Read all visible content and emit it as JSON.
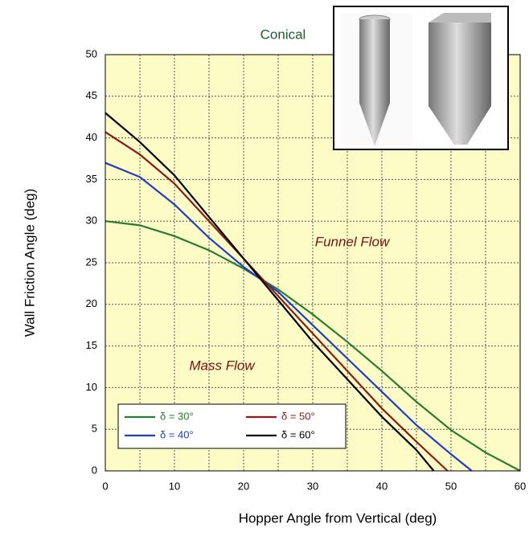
{
  "chart_data": {
    "type": "line",
    "xlabel": "Hopper Angle from Vertical (deg)",
    "ylabel": "Wall Friction Angle (deg)",
    "annotations": [
      "Conical",
      "Funnel Flow",
      "Mass Flow"
    ],
    "xlim": [
      0,
      60
    ],
    "xticks": [
      0,
      10,
      20,
      30,
      40,
      50,
      60
    ],
    "xgrid": [
      0,
      5,
      10,
      15,
      20,
      25,
      30,
      35,
      40,
      45,
      50,
      55,
      60
    ],
    "ylim": [
      0,
      50
    ],
    "yticks": [
      0,
      5,
      10,
      15,
      20,
      25,
      30,
      35,
      40,
      45,
      50
    ],
    "grid": true,
    "legend": "lower left",
    "series": [
      {
        "name": "δ = 30°",
        "color": "#2a7a35",
        "x": [
          0,
          5,
          10,
          15,
          20,
          25,
          30,
          35,
          40,
          45,
          50,
          55,
          60
        ],
        "values": [
          30,
          29.5,
          28.2,
          26.5,
          24.3,
          21.8,
          18.8,
          15.5,
          12,
          8.3,
          4.9,
          2.2,
          0
        ]
      },
      {
        "name": "δ = 40°",
        "color": "#1f3fc0",
        "x": [
          0,
          5,
          10,
          15,
          20,
          25,
          30,
          35,
          40,
          45,
          50,
          53
        ],
        "values": [
          37,
          35.3,
          32,
          28,
          24.5,
          21.5,
          17.5,
          13.5,
          9.5,
          5.5,
          2,
          0
        ]
      },
      {
        "name": "δ = 50°",
        "color": "#8b1a1a",
        "x": [
          0,
          5,
          10,
          15,
          20,
          25,
          30,
          35,
          40,
          45,
          49.5
        ],
        "values": [
          40.7,
          38,
          34.5,
          30,
          25.5,
          21,
          16.5,
          12,
          7.5,
          3.5,
          0
        ]
      },
      {
        "name": "δ = 60°",
        "color": "#000000",
        "x": [
          0,
          5,
          10,
          15,
          20,
          25,
          30,
          35,
          40,
          45,
          47.5
        ],
        "values": [
          43,
          39.5,
          35.5,
          30.5,
          25.5,
          20.5,
          15.5,
          11,
          6.5,
          2.5,
          0
        ]
      }
    ]
  }
}
